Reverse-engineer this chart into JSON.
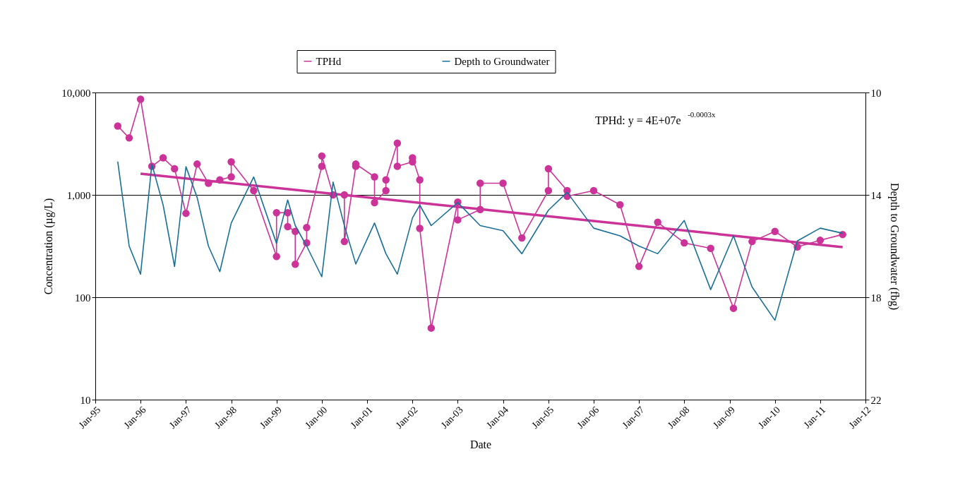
{
  "chart_data": {
    "type": "line",
    "xlabel": "Date",
    "ylabel": "Concentration (µg/L)",
    "y2label": "Depth to Groundwater (fbg)",
    "annotations": [
      "TPHd: y = 4E+07e$^{-0.0003x}$"
    ],
    "xlim": [
      "1995-01",
      "2012-01"
    ],
    "xticks": [
      {
        "value": "1995-01",
        "label": "Jan-95"
      },
      {
        "value": "1996-01",
        "label": "Jan-96"
      },
      {
        "value": "1997-01",
        "label": "Jan-97"
      },
      {
        "value": "1998-01",
        "label": "Jan-98"
      },
      {
        "value": "1999-01",
        "label": "Jan-99"
      },
      {
        "value": "2000-01",
        "label": "Jan-00"
      },
      {
        "value": "2001-01",
        "label": "Jan-01"
      },
      {
        "value": "2002-01",
        "label": "Jan-02"
      },
      {
        "value": "2003-01",
        "label": "Jan-03"
      },
      {
        "value": "2004-01",
        "label": "Jan-04"
      },
      {
        "value": "2005-01",
        "label": "Jan-05"
      },
      {
        "value": "2006-01",
        "label": "Jan-06"
      },
      {
        "value": "2007-01",
        "label": "Jan-07"
      },
      {
        "value": "2008-01",
        "label": "Jan-08"
      },
      {
        "value": "2009-01",
        "label": "Jan-09"
      },
      {
        "value": "2010-01",
        "label": "Jan-10"
      },
      {
        "value": "2011-01",
        "label": "Jan-11"
      },
      {
        "value": "2012-01",
        "label": "Jan-12"
      }
    ],
    "ylim": [
      10,
      10000
    ],
    "log": "y",
    "yticks": [
      10,
      100,
      {
        "value": 1000,
        "label": "1,000"
      },
      {
        "value": 10000,
        "label": "10,000"
      }
    ],
    "y2lim": [
      22,
      10
    ],
    "y2ticks": [
      10,
      14,
      18,
      22
    ],
    "grid": "y",
    "legend": "top",
    "series": [
      {
        "name": "TPHd",
        "color": "#cc3399",
        "marker": "circle",
        "line_style": "solid",
        "x": [
          "1995-07",
          "1995-10",
          "1996-01",
          "1996-04",
          "1996-07",
          "1996-10",
          "1997-01",
          "1997-04",
          "1997-07",
          "1997-10",
          "1998-01",
          "1998-01",
          "1998-07",
          "1999-01",
          "1999-01",
          "1999-04",
          "1999-04",
          "1999-06",
          "1999-06",
          "1999-09",
          "1999-09",
          "2000-01",
          "2000-01",
          "2000-04",
          "2000-07",
          "2000-07",
          "2000-10",
          "2000-10",
          "2001-03",
          "2001-03",
          "2001-06",
          "2001-06",
          "2001-09",
          "2001-09",
          "2002-01",
          "2002-01",
          "2002-03",
          "2002-03",
          "2002-06",
          "2003-01",
          "2003-01",
          "2003-07",
          "2003-07",
          "2004-01",
          "2004-06",
          "2005-01",
          "2005-01",
          "2005-06",
          "2005-06",
          "2006-01",
          "2006-08",
          "2007-01",
          "2007-06",
          "2008-01",
          "2008-08",
          "2009-02",
          "2009-07",
          "2010-01",
          "2010-07",
          "2011-01",
          "2011-07"
        ],
        "values": [
          4700,
          3600,
          8600,
          1900,
          2300,
          1800,
          660,
          2000,
          1300,
          1400,
          1500,
          2100,
          1100,
          250,
          670,
          670,
          490,
          440,
          210,
          340,
          480,
          1900,
          2400,
          1000,
          1000,
          350,
          1900,
          2000,
          1500,
          840,
          1100,
          1400,
          3200,
          1900,
          2100,
          2300,
          1400,
          470,
          50,
          850,
          570,
          720,
          1300,
          1300,
          380,
          1100,
          1800,
          1100,
          970,
          1100,
          800,
          200,
          540,
          340,
          300,
          78,
          350,
          440,
          310,
          360,
          410
        ]
      },
      {
        "name": "Depth to Groundwater",
        "color": "#1a6f99",
        "marker": "none",
        "line_style": "solid",
        "axis": "y2",
        "x": [
          "1995-07",
          "1995-10",
          "1996-01",
          "1996-04",
          "1996-07",
          "1996-10",
          "1997-01",
          "1997-04",
          "1997-07",
          "1997-10",
          "1998-01",
          "1998-07",
          "1999-01",
          "1999-04",
          "1999-06",
          "1999-09",
          "2000-01",
          "2000-04",
          "2000-07",
          "2000-10",
          "2001-03",
          "2001-06",
          "2001-09",
          "2002-01",
          "2002-03",
          "2002-06",
          "2003-01",
          "2003-07",
          "2004-01",
          "2004-06",
          "2005-01",
          "2005-06",
          "2006-01",
          "2006-08",
          "2007-01",
          "2007-06",
          "2008-01",
          "2008-08",
          "2009-02",
          "2009-07",
          "2010-01",
          "2010-07",
          "2011-01",
          "2011-07"
        ],
        "values": [
          12.7,
          16.0,
          17.1,
          12.8,
          14.4,
          16.8,
          12.9,
          14.1,
          16.0,
          17.0,
          15.1,
          13.3,
          15.9,
          14.2,
          15.2,
          16.0,
          17.2,
          13.5,
          15.2,
          16.7,
          15.1,
          16.3,
          17.1,
          14.9,
          14.4,
          15.2,
          14.3,
          15.2,
          15.4,
          16.3,
          14.6,
          13.9,
          15.3,
          15.6,
          16.0,
          16.3,
          15.0,
          17.7,
          15.6,
          17.6,
          18.9,
          15.8,
          15.3,
          15.5
        ]
      },
      {
        "color": "#cc3399",
        "marker": "none",
        "line_style": "solid",
        "x": [
          "1996-01",
          "2011-07"
        ],
        "values": [
          1610,
          309
        ]
      }
    ]
  }
}
